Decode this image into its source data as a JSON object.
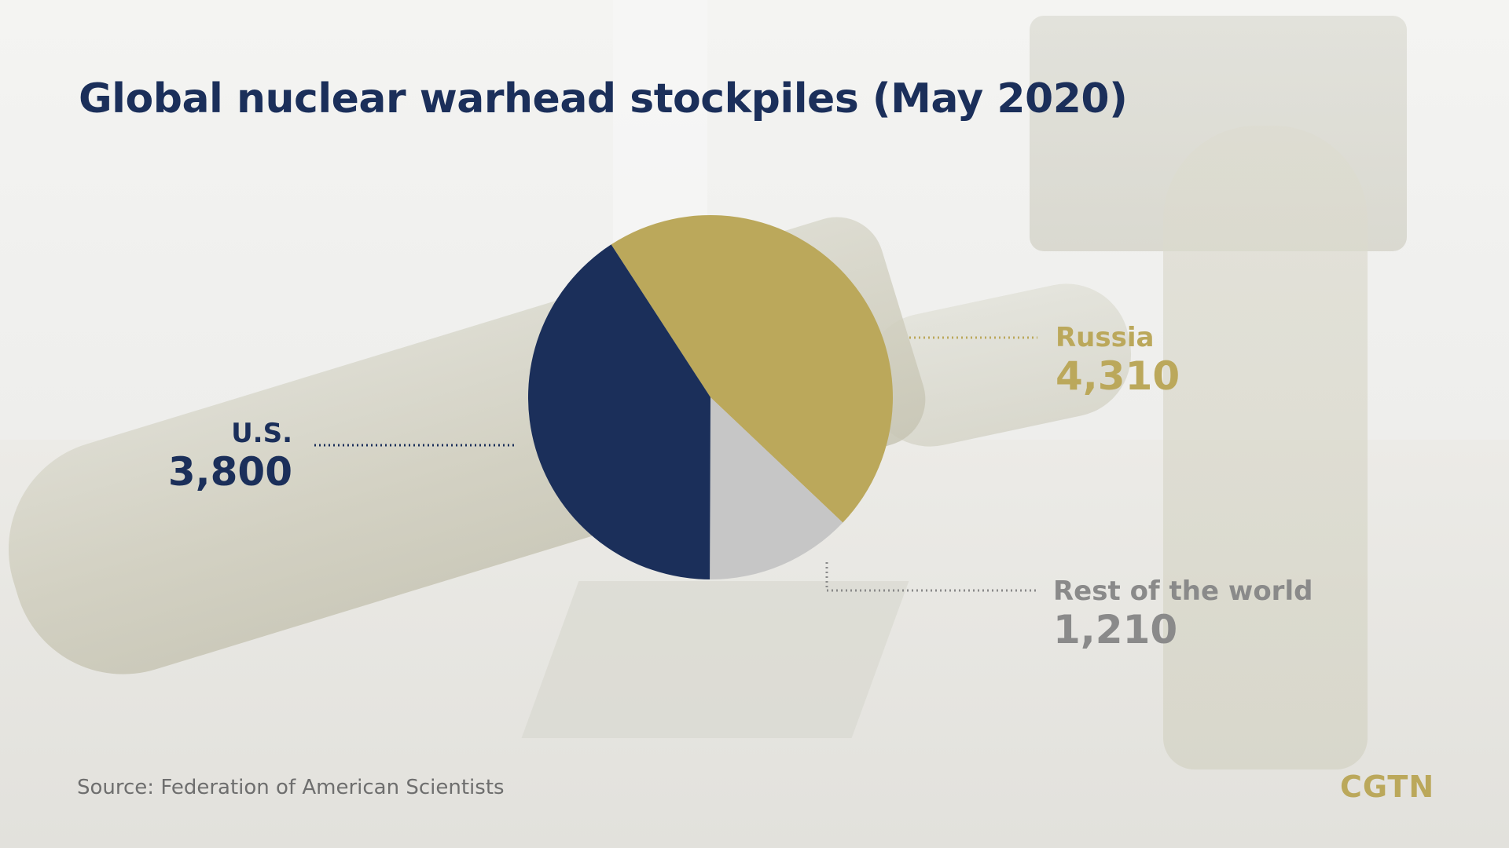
{
  "title": "Global nuclear warhead stockpiles (May 2020)",
  "source": "Source: Federation of American Scientists",
  "logo": "CGTN",
  "colors": {
    "us": "#1b2f5a",
    "russia": "#bba85b",
    "rest": "#c6c6c6",
    "title": "#1b2f5a",
    "rest_label": "#8a8a8a"
  },
  "chart_data": {
    "type": "pie",
    "title": "Global nuclear warhead stockpiles (May 2020)",
    "slices": [
      {
        "label": "Russia",
        "value": 4310,
        "display": "4,310",
        "color": "#bba85b"
      },
      {
        "label": "Rest of the world",
        "value": 1210,
        "display": "1,210",
        "color": "#c6c6c6"
      },
      {
        "label": "U.S.",
        "value": 3800,
        "display": "3,800",
        "color": "#1b2f5a"
      }
    ]
  }
}
